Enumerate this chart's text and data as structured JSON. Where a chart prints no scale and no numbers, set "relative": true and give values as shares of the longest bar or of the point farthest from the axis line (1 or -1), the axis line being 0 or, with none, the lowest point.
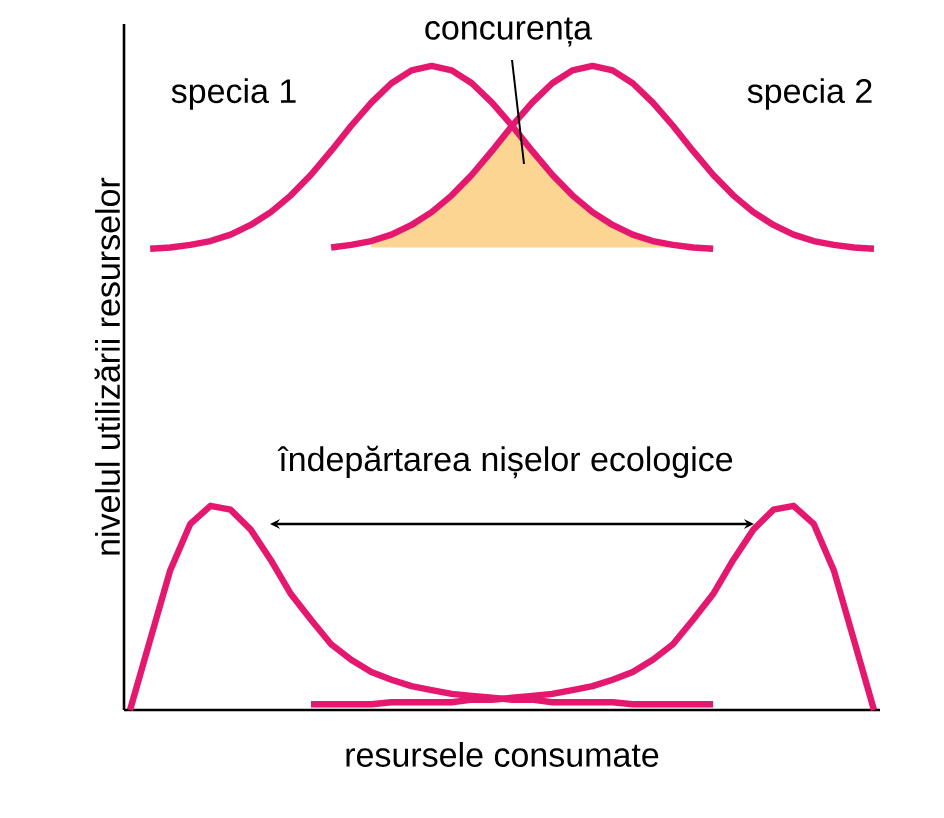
{
  "chart_data": {
    "type": "line",
    "relative": true,
    "marker": "none",
    "line_style": "solid",
    "xlabel": "resursele consumate",
    "ylabel": "nivelul utilizării resurselor",
    "annotations": [
      "specia 1",
      "specia 2",
      "concurența",
      "îndepărtarea nișelor ecologice"
    ],
    "categories": [
      null,
      null,
      null,
      null,
      null,
      null,
      null,
      null,
      null,
      null,
      null,
      null,
      null,
      null,
      null,
      null,
      null,
      null,
      null,
      null,
      null,
      null,
      null,
      null,
      null,
      null,
      null,
      null,
      null,
      null,
      null,
      null,
      null,
      null,
      null,
      null,
      null,
      null
    ],
    "series": [
      {
        "type": "area",
        "color": "#fdd592",
        "values": [
          null,
          null,
          null,
          null,
          null,
          null,
          null,
          null,
          null,
          null,
          null,
          null,
          0.728,
          0.738,
          0.753,
          0.773,
          0.799,
          0.831,
          0.868,
          0.907,
          0.868,
          0.831,
          0.799,
          0.773,
          0.753,
          0.738,
          0.728,
          0.722,
          0.718,
          null,
          null,
          null,
          null,
          null,
          null,
          null,
          null,
          null
        ]
      },
      {
        "color": "#e5186f",
        "values": [
          null,
          0.716,
          0.718,
          0.722,
          0.728,
          0.738,
          0.753,
          0.773,
          0.799,
          0.831,
          0.868,
          0.907,
          0.943,
          0.973,
          0.993,
          1.0,
          0.993,
          0.973,
          0.943,
          0.907,
          0.868,
          0.831,
          0.799,
          0.773,
          0.753,
          0.738,
          0.728,
          0.722,
          0.718,
          0.716,
          null,
          null,
          null,
          null,
          null,
          null,
          null,
          null
        ]
      },
      {
        "color": "#e5186f",
        "values": [
          null,
          null,
          null,
          null,
          null,
          null,
          null,
          null,
          null,
          null,
          0.718,
          0.722,
          0.728,
          0.738,
          0.753,
          0.773,
          0.799,
          0.831,
          0.868,
          0.907,
          0.943,
          0.973,
          0.993,
          1.0,
          0.993,
          0.973,
          0.943,
          0.907,
          0.868,
          0.831,
          0.799,
          0.773,
          0.753,
          0.738,
          0.728,
          0.722,
          0.718,
          0.716
        ]
      },
      {
        "color": "#e5186f",
        "values": [
          0,
          0.109,
          0.217,
          0.289,
          0.317,
          0.311,
          0.28,
          0.233,
          0.18,
          0.14,
          0.102,
          0.078,
          0.059,
          0.047,
          0.037,
          0.031,
          0.025,
          0.022,
          0.019,
          0.016,
          0.016,
          0.012,
          0.012,
          0.012,
          0.012,
          0.009,
          0.009,
          0.009,
          0.009,
          0.009,
          null,
          null,
          null,
          null,
          null,
          null,
          null,
          null
        ]
      },
      {
        "color": "#e5186f",
        "values": [
          null,
          null,
          null,
          null,
          null,
          null,
          null,
          null,
          null,
          0.009,
          0.009,
          0.009,
          0.009,
          0.012,
          0.012,
          0.012,
          0.012,
          0.016,
          0.016,
          0.019,
          0.022,
          0.025,
          0.031,
          0.037,
          0.047,
          0.059,
          0.078,
          0.102,
          0.14,
          0.18,
          0.233,
          0.28,
          0.311,
          0.317,
          0.289,
          0.217,
          0.109,
          0
        ]
      }
    ]
  }
}
